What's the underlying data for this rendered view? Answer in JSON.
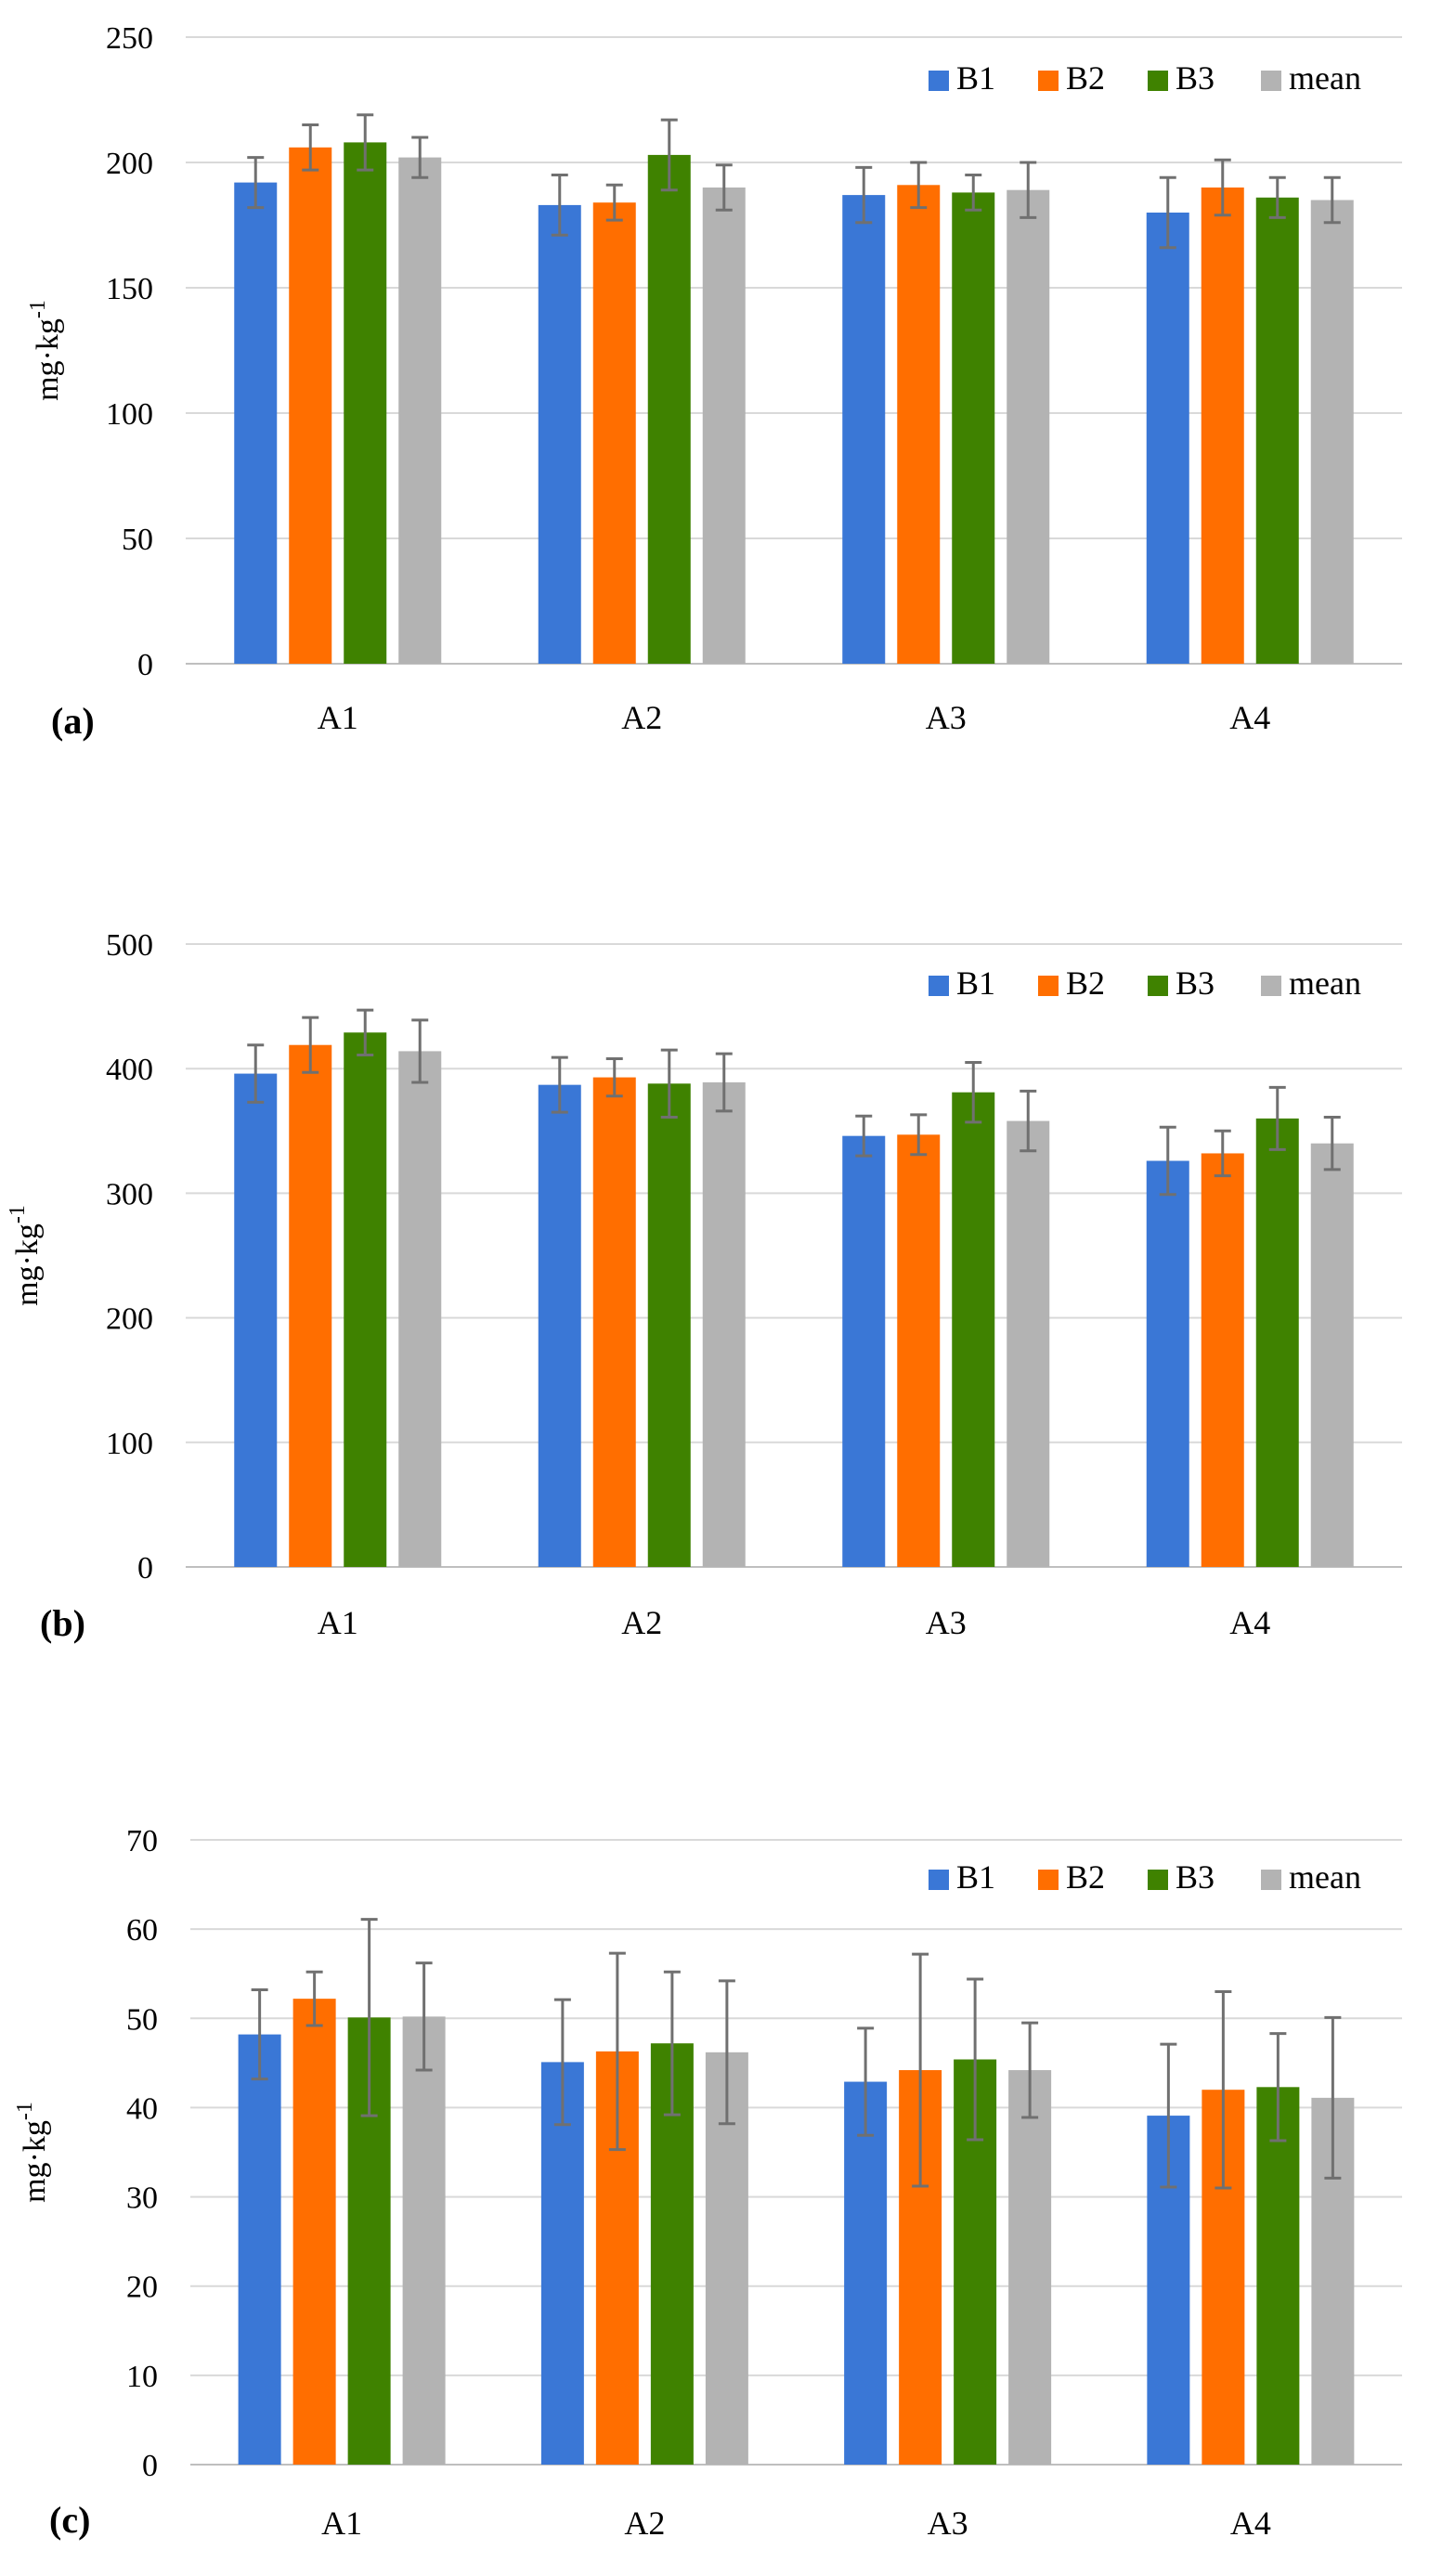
{
  "colors": {
    "B1": "#3A77D6",
    "B2": "#FF6E00",
    "B3": "#3F8200",
    "mean": "#B3B3B3"
  },
  "chart_data": [
    {
      "type": "bar",
      "panel_label": "(a)",
      "ylabel": "mg·kg",
      "ylabel_sup": "-1",
      "categories": [
        "A1",
        "A2",
        "A3",
        "A4"
      ],
      "ylim": [
        0,
        250
      ],
      "yticks": [
        0,
        50,
        100,
        150,
        200,
        250
      ],
      "legend": [
        "B1",
        "B2",
        "B3",
        "mean"
      ],
      "series": [
        {
          "name": "B1",
          "values": [
            192,
            183,
            187,
            180
          ],
          "errors": [
            10,
            12,
            11,
            14
          ]
        },
        {
          "name": "B2",
          "values": [
            206,
            184,
            191,
            190
          ],
          "errors": [
            9,
            7,
            9,
            11
          ]
        },
        {
          "name": "B3",
          "values": [
            208,
            203,
            188,
            186
          ],
          "errors": [
            11,
            14,
            7,
            8
          ]
        },
        {
          "name": "mean",
          "values": [
            202,
            190,
            189,
            185
          ],
          "errors": [
            8,
            9,
            11,
            9
          ]
        }
      ]
    },
    {
      "type": "bar",
      "panel_label": "(b)",
      "ylabel": "mg·kg",
      "ylabel_sup": "-1",
      "categories": [
        "A1",
        "A2",
        "A3",
        "A4"
      ],
      "ylim": [
        0,
        500
      ],
      "yticks": [
        0,
        100,
        200,
        300,
        400,
        500
      ],
      "legend": [
        "B1",
        "B2",
        "B3",
        "mean"
      ],
      "series": [
        {
          "name": "B1",
          "values": [
            396,
            387,
            346,
            326
          ],
          "errors": [
            23,
            22,
            16,
            27
          ]
        },
        {
          "name": "B2",
          "values": [
            419,
            393,
            347,
            332
          ],
          "errors": [
            22,
            15,
            16,
            18
          ]
        },
        {
          "name": "B3",
          "values": [
            429,
            388,
            381,
            360
          ],
          "errors": [
            18,
            27,
            24,
            25
          ]
        },
        {
          "name": "mean",
          "values": [
            414,
            389,
            358,
            340
          ],
          "errors": [
            25,
            23,
            24,
            21
          ]
        }
      ]
    },
    {
      "type": "bar",
      "panel_label": "(c)",
      "ylabel": "mg·kg",
      "ylabel_sup": "-1",
      "categories": [
        "A1",
        "A2",
        "A3",
        "A4"
      ],
      "ylim": [
        0,
        70
      ],
      "yticks": [
        0,
        10,
        20,
        30,
        40,
        50,
        60,
        70
      ],
      "legend": [
        "B1",
        "B2",
        "B3",
        "mean"
      ],
      "series": [
        {
          "name": "B1",
          "values": [
            48.2,
            45.1,
            42.9,
            39.1
          ],
          "errors": [
            5,
            7,
            6,
            8
          ]
        },
        {
          "name": "B2",
          "values": [
            52.2,
            46.3,
            44.2,
            42.0
          ],
          "errors": [
            3,
            11,
            13,
            11
          ]
        },
        {
          "name": "B3",
          "values": [
            50.1,
            47.2,
            45.4,
            42.3
          ],
          "errors": [
            11,
            8,
            9,
            6
          ]
        },
        {
          "name": "mean",
          "values": [
            50.2,
            46.2,
            44.2,
            41.1
          ],
          "errors": [
            6,
            8,
            5.3,
            9
          ]
        }
      ]
    }
  ]
}
